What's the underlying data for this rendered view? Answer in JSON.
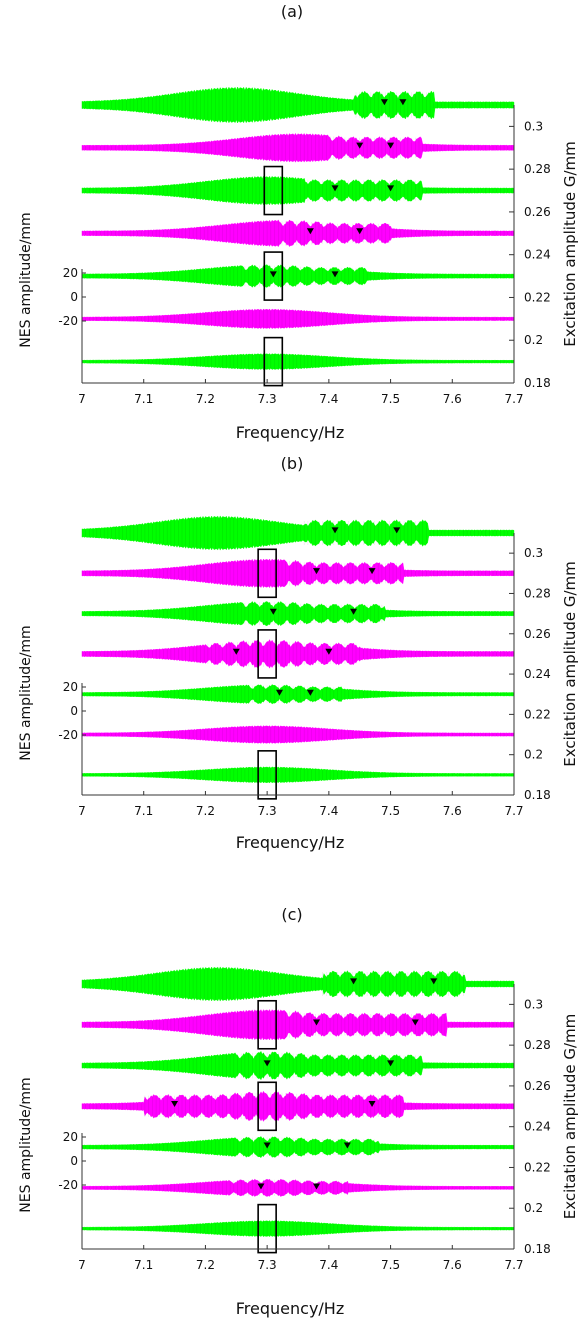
{
  "chart_data": [
    {
      "type": "area",
      "title": "(a)",
      "xlabel": "Frequency/Hz",
      "ylabel_left": "NES amplitude/mm",
      "ylabel_right": "Excitation amplitude G/mm",
      "xlim": [
        7,
        7.7
      ],
      "x_ticks": [
        "7",
        "7.1",
        "7.2",
        "7.3",
        "7.4",
        "7.5",
        "7.6",
        "7.7"
      ],
      "left_ticks": [
        "20",
        "0",
        "-20"
      ],
      "right_ticks": [
        "0.3",
        "0.28",
        "0.26",
        "0.24",
        "0.22",
        "0.2",
        "0.18"
      ],
      "right_ylim": [
        0.18,
        0.31
      ],
      "series": [
        {
          "excitation": 0.31,
          "color": "#00ff00",
          "peak_x": 7.25,
          "max_amplitude": 20,
          "markers": [
            7.49,
            7.52
          ]
        },
        {
          "excitation": 0.29,
          "color": "#ff00ff",
          "peak_x": 7.35,
          "max_amplitude": 16,
          "markers": [
            7.45,
            7.5
          ]
        },
        {
          "excitation": 0.27,
          "color": "#00ff00",
          "peak_x": 7.3,
          "max_amplitude": 16,
          "markers": [
            7.41,
            7.5
          ]
        },
        {
          "excitation": 0.25,
          "color": "#ff00ff",
          "peak_x": 7.33,
          "max_amplitude": 15,
          "markers": [
            7.37,
            7.45
          ]
        },
        {
          "excitation": 0.23,
          "color": "#00ff00",
          "peak_x": 7.3,
          "max_amplitude": 13,
          "markers": [
            7.31,
            7.41
          ]
        },
        {
          "excitation": 0.21,
          "color": "#ff00ff",
          "peak_x": 7.3,
          "max_amplitude": 11,
          "markers": []
        },
        {
          "excitation": 0.19,
          "color": "#00ff00",
          "peak_x": 7.3,
          "max_amplitude": 9,
          "markers": []
        }
      ],
      "highlight_boxes": [
        {
          "x": 7.31,
          "excitation": 0.27
        },
        {
          "x": 7.31,
          "excitation": 0.23
        },
        {
          "x": 7.31,
          "excitation": 0.19
        }
      ]
    },
    {
      "type": "area",
      "title": "(b)",
      "xlabel": "Frequency/Hz",
      "ylabel_left": "NES amplitude/mm",
      "ylabel_right": "Excitation amplitude G/mm",
      "xlim": [
        7,
        7.7
      ],
      "x_ticks": [
        "7",
        "7.1",
        "7.2",
        "7.3",
        "7.4",
        "7.5",
        "7.6",
        "7.7"
      ],
      "left_ticks": [
        "20",
        "0",
        "-20"
      ],
      "right_ticks": [
        "0.3",
        "0.28",
        "0.26",
        "0.24",
        "0.22",
        "0.2",
        "0.18"
      ],
      "right_ylim": [
        0.18,
        0.31
      ],
      "series": [
        {
          "excitation": 0.31,
          "color": "#00ff00",
          "peak_x": 7.22,
          "max_amplitude": 19,
          "markers": [
            7.41,
            7.51
          ]
        },
        {
          "excitation": 0.29,
          "color": "#ff00ff",
          "peak_x": 7.3,
          "max_amplitude": 16,
          "markers": [
            7.38,
            7.47
          ]
        },
        {
          "excitation": 0.27,
          "color": "#00ff00",
          "peak_x": 7.3,
          "max_amplitude": 14,
          "markers": [
            7.31,
            7.44
          ]
        },
        {
          "excitation": 0.25,
          "color": "#ff00ff",
          "peak_x": 7.3,
          "max_amplitude": 16,
          "markers": [
            7.25,
            7.4
          ]
        },
        {
          "excitation": 0.23,
          "color": "#00ff00",
          "peak_x": 7.3,
          "max_amplitude": 11,
          "markers": [
            7.32,
            7.37
          ]
        },
        {
          "excitation": 0.21,
          "color": "#ff00ff",
          "peak_x": 7.3,
          "max_amplitude": 10,
          "markers": []
        },
        {
          "excitation": 0.19,
          "color": "#00ff00",
          "peak_x": 7.3,
          "max_amplitude": 9,
          "markers": []
        }
      ],
      "highlight_boxes": [
        {
          "x": 7.3,
          "excitation": 0.29
        },
        {
          "x": 7.3,
          "excitation": 0.25
        },
        {
          "x": 7.3,
          "excitation": 0.19
        }
      ]
    },
    {
      "type": "area",
      "title": "(c)",
      "xlabel": "Frequency/Hz",
      "ylabel_left": "NES amplitude/mm",
      "ylabel_right": "Excitation amplitude G/mm",
      "xlim": [
        7,
        7.7
      ],
      "x_ticks": [
        "7",
        "7.1",
        "7.2",
        "7.3",
        "7.4",
        "7.5",
        "7.6",
        "7.7"
      ],
      "left_ticks": [
        "20",
        "0",
        "-20"
      ],
      "right_ticks": [
        "0.3",
        "0.28",
        "0.26",
        "0.24",
        "0.22",
        "0.2",
        "0.18"
      ],
      "right_ylim": [
        0.18,
        0.31
      ],
      "series": [
        {
          "excitation": 0.31,
          "color": "#00ff00",
          "peak_x": 7.22,
          "max_amplitude": 19,
          "markers": [
            7.44,
            7.57
          ]
        },
        {
          "excitation": 0.29,
          "color": "#ff00ff",
          "peak_x": 7.3,
          "max_amplitude": 17,
          "markers": [
            7.38,
            7.54
          ]
        },
        {
          "excitation": 0.27,
          "color": "#00ff00",
          "peak_x": 7.3,
          "max_amplitude": 16,
          "markers": [
            7.3,
            7.5
          ]
        },
        {
          "excitation": 0.25,
          "color": "#ff00ff",
          "peak_x": 7.3,
          "max_amplitude": 17,
          "markers": [
            7.15,
            7.47
          ]
        },
        {
          "excitation": 0.23,
          "color": "#00ff00",
          "peak_x": 7.3,
          "max_amplitude": 12,
          "markers": [
            7.3,
            7.43
          ]
        },
        {
          "excitation": 0.21,
          "color": "#ff00ff",
          "peak_x": 7.3,
          "max_amplitude": 10,
          "markers": [
            7.29,
            7.38
          ]
        },
        {
          "excitation": 0.19,
          "color": "#00ff00",
          "peak_x": 7.3,
          "max_amplitude": 9,
          "markers": []
        }
      ],
      "highlight_boxes": [
        {
          "x": 7.3,
          "excitation": 0.29
        },
        {
          "x": 7.3,
          "excitation": 0.25
        },
        {
          "x": 7.3,
          "excitation": 0.19
        }
      ]
    }
  ]
}
